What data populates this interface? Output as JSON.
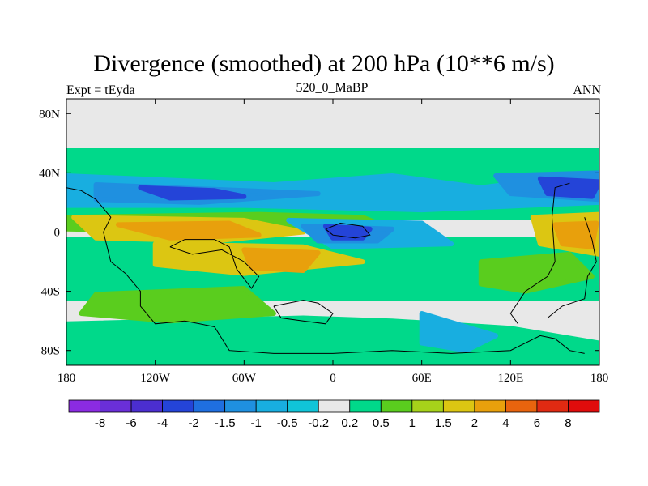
{
  "chart_data": {
    "type": "heatmap",
    "title": "Divergence (smoothed) at 200 hPa (10**6 m/s)",
    "left_label": "Expt = tEyda",
    "center_label": "520_0_MaBP",
    "right_label": "ANN",
    "x_range": [
      -180,
      180
    ],
    "y_range": [
      -90,
      90
    ],
    "x_ticks": [
      {
        "value": -180,
        "label": "180"
      },
      {
        "value": -120,
        "label": "120W"
      },
      {
        "value": -60,
        "label": "60W"
      },
      {
        "value": 0,
        "label": "0"
      },
      {
        "value": 60,
        "label": "60E"
      },
      {
        "value": 120,
        "label": "120E"
      },
      {
        "value": 180,
        "label": "180"
      }
    ],
    "y_ticks": [
      {
        "value": 80,
        "label": "80N"
      },
      {
        "value": 40,
        "label": "40N"
      },
      {
        "value": 0,
        "label": "0"
      },
      {
        "value": -40,
        "label": "40S"
      },
      {
        "value": -80,
        "label": "80S"
      }
    ],
    "colorbar": {
      "labels": [
        "-8",
        "-6",
        "-4",
        "-2",
        "-1.5",
        "-1",
        "-0.5",
        "-0.2",
        "0.2",
        "0.5",
        "1",
        "1.5",
        "2",
        "4",
        "6",
        "8"
      ],
      "colors": [
        "#8b2be2",
        "#6a2fd8",
        "#4b2ed0",
        "#2444d8",
        "#1f6fe0",
        "#1f90e0",
        "#18aee0",
        "#10c4d8",
        "#e8e8e8",
        "#00d98a",
        "#5acd1e",
        "#a6d21a",
        "#dcc612",
        "#e8a00c",
        "#e8640e",
        "#e02a12",
        "#e00c0c"
      ]
    },
    "contour_bands": [
      {
        "level": 0.5,
        "color": "#00d98a",
        "regions": [
          [
            [
              -180,
              55
            ],
            [
              180,
              55
            ],
            [
              180,
              10
            ],
            [
              -180,
              10
            ]
          ],
          [
            [
              -180,
              -5
            ],
            [
              180,
              -5
            ],
            [
              180,
              -45
            ],
            [
              -180,
              -45
            ]
          ],
          [
            [
              -180,
              -62
            ],
            [
              -20,
              -58
            ],
            [
              40,
              -60
            ],
            [
              120,
              -65
            ],
            [
              180,
              -75
            ],
            [
              180,
              -90
            ],
            [
              -180,
              -90
            ]
          ]
        ]
      },
      {
        "level": 1,
        "color": "#5acd1e",
        "regions": [
          [
            [
              -180,
              10
            ],
            [
              -50,
              12
            ],
            [
              20,
              10
            ],
            [
              40,
              2
            ],
            [
              -60,
              0
            ],
            [
              -180,
              2
            ]
          ],
          [
            [
              -160,
              -42
            ],
            [
              -60,
              -38
            ],
            [
              -40,
              -55
            ],
            [
              -110,
              -60
            ],
            [
              -170,
              -55
            ]
          ],
          [
            [
              100,
              -20
            ],
            [
              160,
              -15
            ],
            [
              175,
              -30
            ],
            [
              130,
              -40
            ],
            [
              100,
              -35
            ]
          ]
        ]
      },
      {
        "level": 2,
        "color": "#dcc612",
        "regions": [
          [
            [
              -175,
              10
            ],
            [
              -60,
              8
            ],
            [
              -20,
              0
            ],
            [
              -80,
              -6
            ],
            [
              -160,
              -4
            ]
          ],
          [
            [
              -120,
              -8
            ],
            [
              -20,
              -10
            ],
            [
              20,
              -20
            ],
            [
              -60,
              -28
            ],
            [
              -120,
              -22
            ]
          ],
          [
            [
              135,
              10
            ],
            [
              180,
              12
            ],
            [
              180,
              -15
            ],
            [
              140,
              -8
            ]
          ]
        ]
      },
      {
        "level": 4,
        "color": "#e8a00c",
        "regions": [
          [
            [
              -145,
              5
            ],
            [
              -70,
              6
            ],
            [
              -50,
              -2
            ],
            [
              -110,
              -4
            ]
          ],
          [
            [
              -60,
              -12
            ],
            [
              -10,
              -14
            ],
            [
              -20,
              -26
            ],
            [
              -55,
              -24
            ]
          ],
          [
            [
              150,
              5
            ],
            [
              178,
              6
            ],
            [
              175,
              -10
            ],
            [
              155,
              -8
            ]
          ]
        ]
      },
      {
        "level": -0.5,
        "color": "#18aee0",
        "regions": [
          [
            [
              -180,
              38
            ],
            [
              -40,
              32
            ],
            [
              40,
              38
            ],
            [
              100,
              30
            ],
            [
              180,
              40
            ],
            [
              180,
              20
            ],
            [
              60,
              15
            ],
            [
              -60,
              18
            ],
            [
              -180,
              18
            ]
          ],
          [
            [
              -30,
              8
            ],
            [
              60,
              6
            ],
            [
              80,
              -8
            ],
            [
              0,
              -10
            ]
          ],
          [
            [
              60,
              -55
            ],
            [
              110,
              -70
            ],
            [
              90,
              -80
            ],
            [
              60,
              -75
            ]
          ]
        ]
      },
      {
        "level": -1,
        "color": "#1f90e0",
        "regions": [
          [
            [
              -160,
              32
            ],
            [
              -60,
              28
            ],
            [
              -10,
              26
            ],
            [
              -90,
              20
            ],
            [
              -160,
              22
            ]
          ],
          [
            [
              110,
              38
            ],
            [
              180,
              40
            ],
            [
              180,
              22
            ],
            [
              120,
              26
            ]
          ],
          [
            [
              -20,
              4
            ],
            [
              40,
              2
            ],
            [
              30,
              -6
            ],
            [
              -10,
              -6
            ]
          ]
        ]
      },
      {
        "level": -2,
        "color": "#2444d8",
        "regions": [
          [
            [
              -130,
              30
            ],
            [
              -80,
              28
            ],
            [
              -60,
              24
            ],
            [
              -110,
              23
            ]
          ],
          [
            [
              140,
              36
            ],
            [
              180,
              34
            ],
            [
              175,
              24
            ],
            [
              145,
              26
            ]
          ],
          [
            [
              -5,
              4
            ],
            [
              25,
              2
            ],
            [
              20,
              -4
            ],
            [
              0,
              -4
            ]
          ]
        ]
      }
    ],
    "coastlines": [
      [
        [
          -180,
          30
        ],
        [
          -170,
          28
        ],
        [
          -160,
          22
        ],
        [
          -150,
          10
        ],
        [
          -155,
          0
        ],
        [
          -150,
          -20
        ],
        [
          -140,
          -28
        ],
        [
          -130,
          -40
        ],
        [
          -130,
          -50
        ],
        [
          -120,
          -62
        ],
        [
          -100,
          -60
        ],
        [
          -90,
          -62
        ],
        [
          -80,
          -64
        ],
        [
          -70,
          -80
        ],
        [
          -40,
          -82
        ],
        [
          0,
          -82
        ],
        [
          40,
          -80
        ],
        [
          80,
          -82
        ],
        [
          120,
          -80
        ],
        [
          140,
          -70
        ],
        [
          150,
          -72
        ],
        [
          160,
          -80
        ],
        [
          170,
          -82
        ]
      ],
      [
        [
          -110,
          -10
        ],
        [
          -100,
          -5
        ],
        [
          -80,
          -5
        ],
        [
          -70,
          -10
        ],
        [
          -65,
          -25
        ],
        [
          -55,
          -38
        ],
        [
          -50,
          -30
        ],
        [
          -60,
          -20
        ],
        [
          -75,
          -12
        ],
        [
          -95,
          -15
        ],
        [
          -110,
          -10
        ]
      ],
      [
        [
          -40,
          -50
        ],
        [
          -20,
          -46
        ],
        [
          -10,
          -48
        ],
        [
          0,
          -55
        ],
        [
          -5,
          -62
        ],
        [
          -20,
          -60
        ],
        [
          -35,
          -58
        ],
        [
          -40,
          -50
        ]
      ],
      [
        [
          -5,
          2
        ],
        [
          5,
          6
        ],
        [
          20,
          4
        ],
        [
          25,
          -2
        ],
        [
          15,
          -4
        ],
        [
          0,
          -2
        ],
        [
          -5,
          2
        ]
      ],
      [
        [
          160,
          33
        ],
        [
          150,
          30
        ],
        [
          148,
          10
        ],
        [
          150,
          -20
        ],
        [
          145,
          -30
        ],
        [
          130,
          -40
        ],
        [
          120,
          -55
        ],
        [
          125,
          -62
        ]
      ],
      [
        [
          170,
          10
        ],
        [
          175,
          -5
        ],
        [
          178,
          -20
        ],
        [
          172,
          -30
        ],
        [
          170,
          -45
        ],
        [
          155,
          -50
        ],
        [
          145,
          -58
        ]
      ]
    ]
  }
}
